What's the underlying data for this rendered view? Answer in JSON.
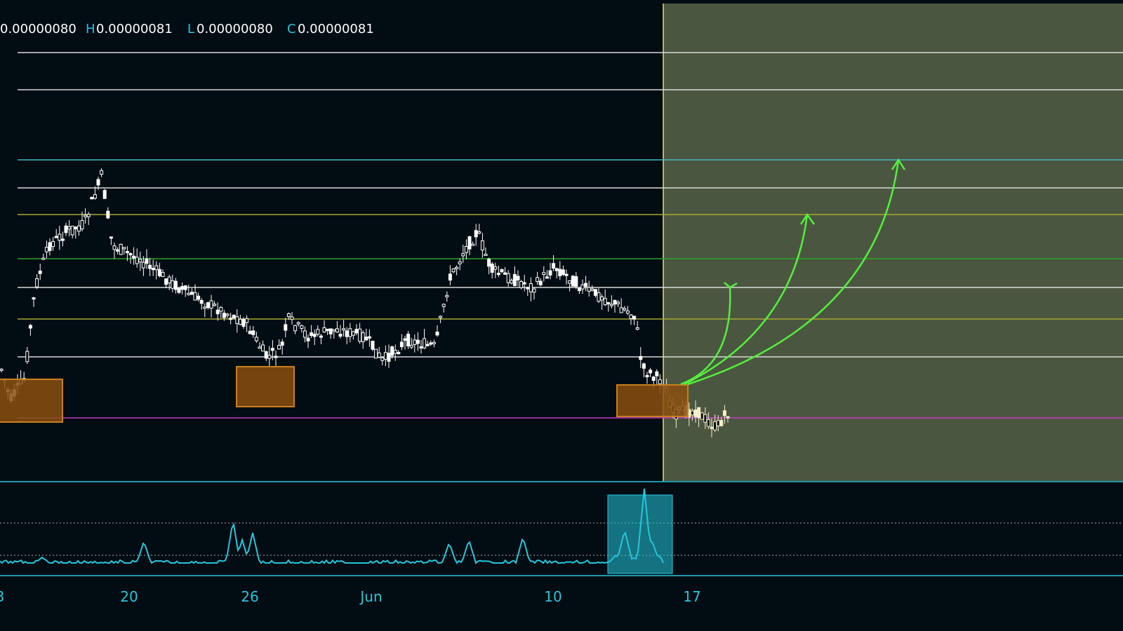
{
  "legend": [
    {
      "value": "0.00000080"
    },
    {
      "key": "H",
      "value": "0.00000081"
    },
    {
      "key": "L",
      "value": "0.00000080"
    },
    {
      "key": "C",
      "value": "0.00000081"
    }
  ],
  "x_axis": {
    "labels": [
      "3",
      "20",
      "26",
      "Jun",
      "10",
      "17"
    ]
  }
}
